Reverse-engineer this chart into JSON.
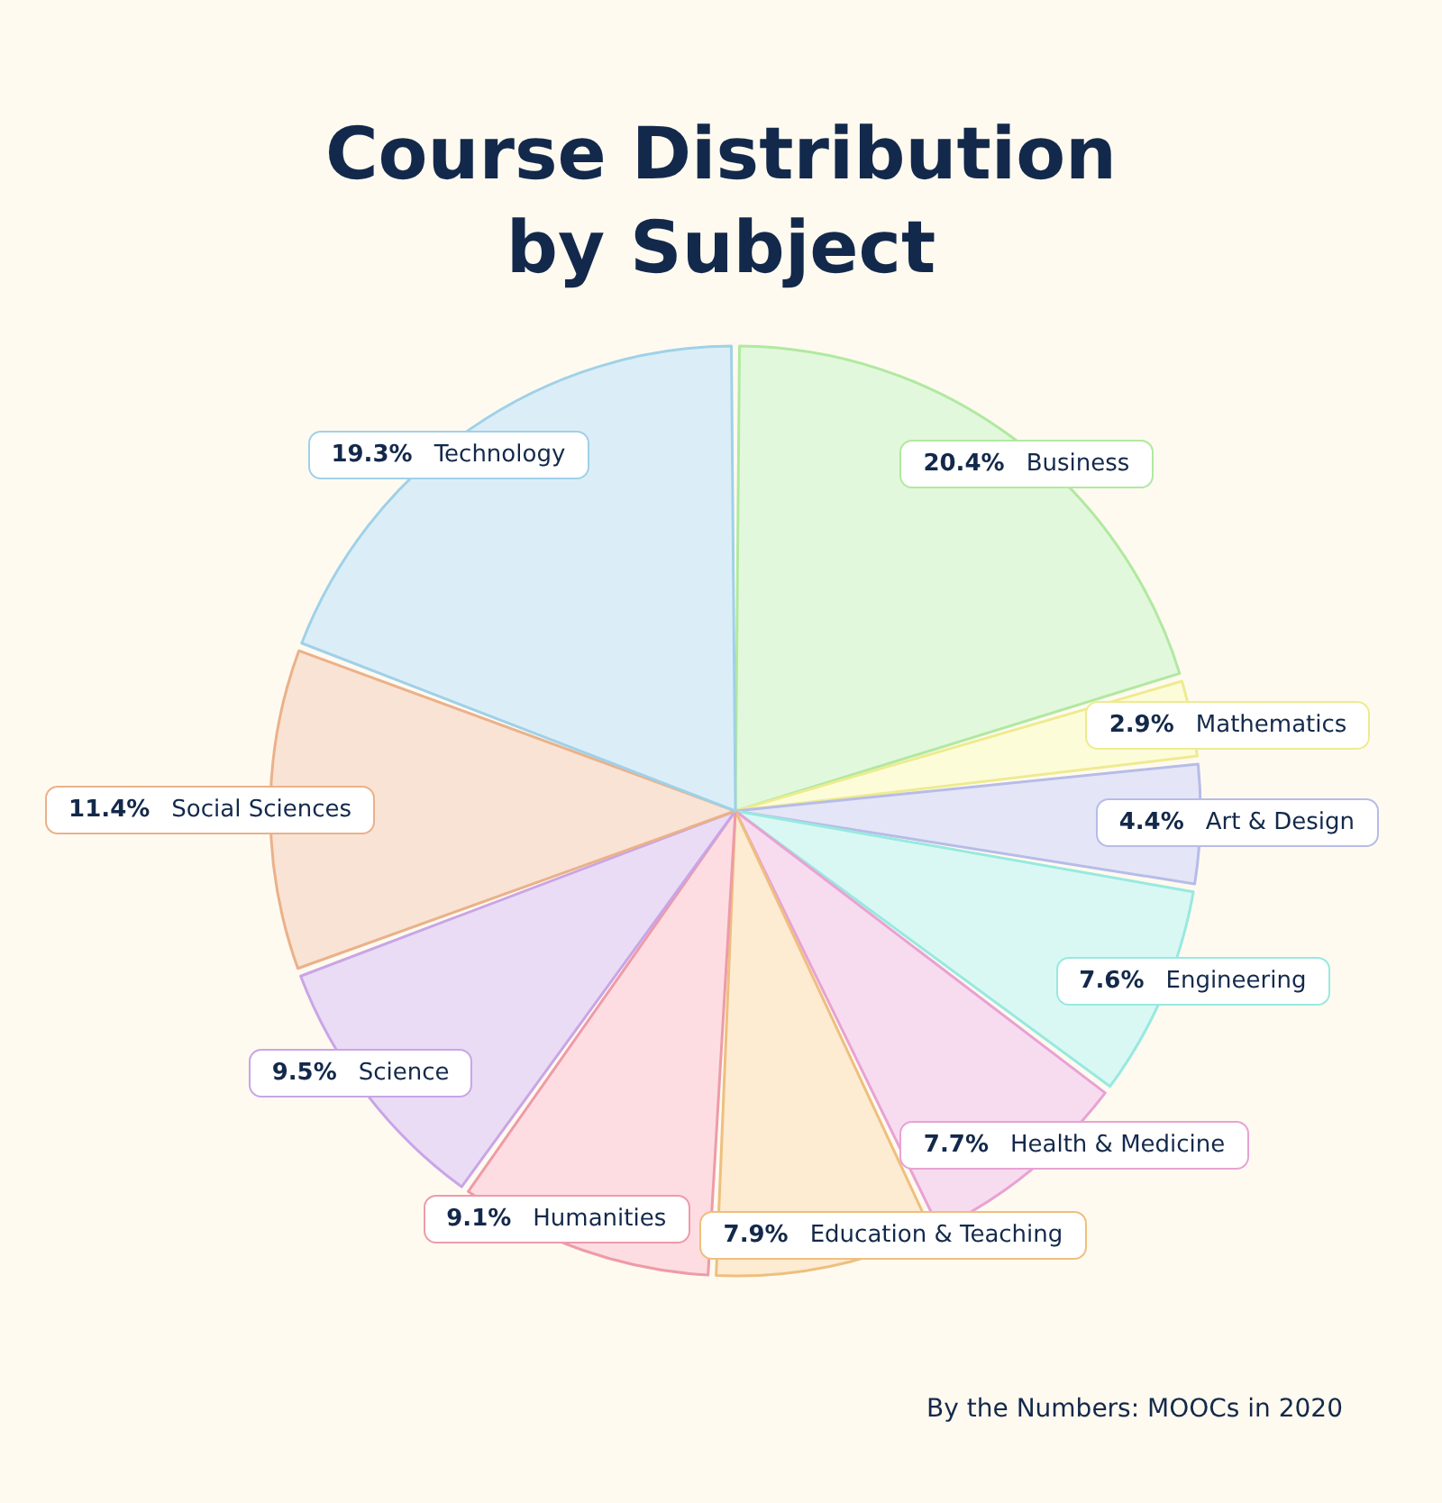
{
  "chart_data": {
    "type": "pie",
    "title": "Course Distribution\nby Subject",
    "categories": [
      "Business",
      "Mathematics",
      "Art & Design",
      "Engineering",
      "Health & Medicine",
      "Education & Teaching",
      "Humanities",
      "Science",
      "Social Sciences",
      "Technology"
    ],
    "values": [
      20.4,
      2.9,
      4.4,
      7.6,
      7.7,
      7.9,
      9.1,
      9.5,
      11.4,
      19.3
    ],
    "colors": [
      "#e2f8dc",
      "#fdfcd9",
      "#e4e6f7",
      "#d9f8f4",
      "#f7dcef",
      "#fdebd2",
      "#fddde2",
      "#eadcf5",
      "#f9e3d4",
      "#dbeef7"
    ],
    "value_labels": [
      "20.4%",
      "2.9%",
      "4.4%",
      "7.6%",
      "7.7%",
      "7.9%",
      "9.1%",
      "9.5%",
      "11.4%",
      "19.3%"
    ],
    "annotations": [
      "By the Numbers: MOOCs in 2020"
    ]
  }
}
